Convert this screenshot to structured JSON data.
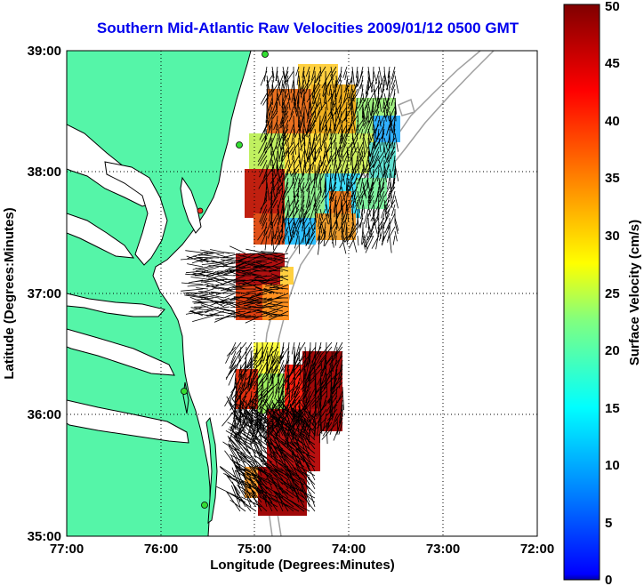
{
  "title": "Southern Mid-Atlantic Raw Velocities 2009/01/12 0500 GMT",
  "x_axis": {
    "label": "Longitude (Degrees:Minutes)",
    "ticks": [
      "77:00",
      "76:00",
      "75:00",
      "74:00",
      "73:00",
      "72:00"
    ],
    "range_deg_west": [
      77,
      72
    ]
  },
  "y_axis": {
    "label": "Latitude (Degrees:Minutes)",
    "ticks": [
      "35:00",
      "36:00",
      "37:00",
      "38:00",
      "39:00"
    ],
    "range_deg_north": [
      35,
      39
    ]
  },
  "colorbar": {
    "label": "Surface Velocity (cm/s)",
    "ticks": [
      "0",
      "5",
      "10",
      "15",
      "20",
      "25",
      "30",
      "35",
      "40",
      "45",
      "50"
    ],
    "range": [
      0,
      50
    ]
  },
  "grid": "dotted",
  "colors": {
    "land": "#55f5a8",
    "coast": "#000000",
    "bathymetry": "#a0a0a0",
    "title": "#0000ee",
    "station": "#33dd33",
    "station_alt": "#ee3322"
  }
}
